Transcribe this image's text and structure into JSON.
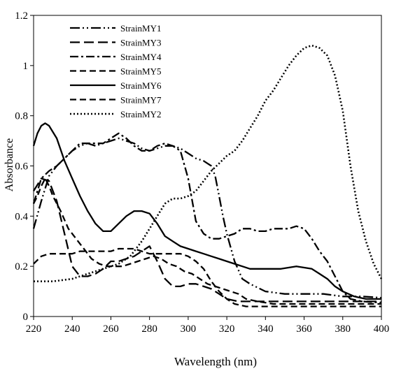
{
  "chart_data": {
    "type": "line",
    "title": "",
    "xlabel": "Wavelength (nm)",
    "ylabel": "Absorbance",
    "xlim": [
      220,
      400
    ],
    "ylim": [
      0,
      1.2
    ],
    "xticks": [
      220,
      240,
      260,
      280,
      300,
      320,
      340,
      360,
      380,
      400
    ],
    "yticks": [
      0,
      0.2,
      0.4,
      0.6,
      0.8,
      1,
      1.2
    ],
    "xtick_labels": [
      "220",
      "240",
      "260",
      "280",
      "300",
      "320",
      "340",
      "360",
      "380",
      "400"
    ],
    "ytick_labels": [
      "0",
      "0.2",
      "0.4",
      "0.6",
      "0.8",
      "1",
      "1.2"
    ],
    "grid": false,
    "legend_position": "top-left",
    "series": [
      {
        "name": "StrainMY1",
        "dash": "longdashdotdot",
        "points": [
          [
            220,
            0.35
          ],
          [
            224,
            0.46
          ],
          [
            228,
            0.56
          ],
          [
            232,
            0.6
          ],
          [
            236,
            0.63
          ],
          [
            240,
            0.66
          ],
          [
            244,
            0.68
          ],
          [
            248,
            0.69
          ],
          [
            252,
            0.68
          ],
          [
            256,
            0.69
          ],
          [
            260,
            0.7
          ],
          [
            264,
            0.71
          ],
          [
            268,
            0.7
          ],
          [
            272,
            0.69
          ],
          [
            276,
            0.67
          ],
          [
            280,
            0.66
          ],
          [
            284,
            0.67
          ],
          [
            288,
            0.68
          ],
          [
            292,
            0.68
          ],
          [
            296,
            0.67
          ],
          [
            300,
            0.65
          ],
          [
            304,
            0.63
          ],
          [
            308,
            0.62
          ],
          [
            310,
            0.61
          ],
          [
            312,
            0.6
          ],
          [
            314,
            0.56
          ],
          [
            316,
            0.48
          ],
          [
            318,
            0.4
          ],
          [
            320,
            0.33
          ],
          [
            324,
            0.22
          ],
          [
            328,
            0.15
          ],
          [
            332,
            0.13
          ],
          [
            340,
            0.1
          ],
          [
            350,
            0.09
          ],
          [
            360,
            0.09
          ],
          [
            370,
            0.09
          ],
          [
            380,
            0.08
          ],
          [
            390,
            0.08
          ],
          [
            400,
            0.075
          ]
        ]
      },
      {
        "name": "StrainMY3",
        "dash": "longdash",
        "points": [
          [
            220,
            0.5
          ],
          [
            224,
            0.55
          ],
          [
            228,
            0.54
          ],
          [
            232,
            0.46
          ],
          [
            236,
            0.33
          ],
          [
            240,
            0.2
          ],
          [
            244,
            0.16
          ],
          [
            248,
            0.16
          ],
          [
            252,
            0.17
          ],
          [
            256,
            0.19
          ],
          [
            260,
            0.22
          ],
          [
            264,
            0.22
          ],
          [
            268,
            0.23
          ],
          [
            272,
            0.24
          ],
          [
            276,
            0.26
          ],
          [
            280,
            0.28
          ],
          [
            284,
            0.22
          ],
          [
            288,
            0.15
          ],
          [
            292,
            0.12
          ],
          [
            296,
            0.12
          ],
          [
            300,
            0.13
          ],
          [
            304,
            0.13
          ],
          [
            308,
            0.12
          ],
          [
            312,
            0.11
          ],
          [
            316,
            0.09
          ],
          [
            320,
            0.07
          ],
          [
            326,
            0.06
          ],
          [
            340,
            0.06
          ],
          [
            360,
            0.06
          ],
          [
            380,
            0.06
          ],
          [
            400,
            0.06
          ]
        ]
      },
      {
        "name": "StrainMY4",
        "dash": "dashdot",
        "points": [
          [
            220,
            0.45
          ],
          [
            224,
            0.55
          ],
          [
            228,
            0.58
          ],
          [
            232,
            0.6
          ],
          [
            236,
            0.63
          ],
          [
            240,
            0.66
          ],
          [
            244,
            0.69
          ],
          [
            248,
            0.69
          ],
          [
            252,
            0.69
          ],
          [
            256,
            0.69
          ],
          [
            260,
            0.71
          ],
          [
            264,
            0.73
          ],
          [
            268,
            0.71
          ],
          [
            272,
            0.68
          ],
          [
            276,
            0.66
          ],
          [
            280,
            0.66
          ],
          [
            284,
            0.68
          ],
          [
            288,
            0.69
          ],
          [
            292,
            0.68
          ],
          [
            296,
            0.66
          ],
          [
            300,
            0.55
          ],
          [
            304,
            0.38
          ],
          [
            308,
            0.33
          ],
          [
            312,
            0.31
          ],
          [
            316,
            0.31
          ],
          [
            320,
            0.32
          ],
          [
            324,
            0.33
          ],
          [
            328,
            0.35
          ],
          [
            332,
            0.35
          ],
          [
            336,
            0.34
          ],
          [
            340,
            0.34
          ],
          [
            344,
            0.35
          ],
          [
            348,
            0.35
          ],
          [
            352,
            0.35
          ],
          [
            356,
            0.36
          ],
          [
            360,
            0.35
          ],
          [
            364,
            0.31
          ],
          [
            368,
            0.26
          ],
          [
            372,
            0.22
          ],
          [
            376,
            0.16
          ],
          [
            380,
            0.1
          ],
          [
            384,
            0.07
          ],
          [
            390,
            0.06
          ],
          [
            400,
            0.055
          ]
        ]
      },
      {
        "name": "StrainMY5",
        "dash": "dash",
        "points": [
          [
            220,
            0.21
          ],
          [
            224,
            0.24
          ],
          [
            228,
            0.25
          ],
          [
            232,
            0.25
          ],
          [
            236,
            0.25
          ],
          [
            240,
            0.25
          ],
          [
            244,
            0.26
          ],
          [
            248,
            0.26
          ],
          [
            252,
            0.26
          ],
          [
            256,
            0.26
          ],
          [
            260,
            0.26
          ],
          [
            264,
            0.27
          ],
          [
            268,
            0.27
          ],
          [
            272,
            0.27
          ],
          [
            276,
            0.26
          ],
          [
            280,
            0.25
          ],
          [
            284,
            0.25
          ],
          [
            288,
            0.25
          ],
          [
            292,
            0.25
          ],
          [
            296,
            0.25
          ],
          [
            300,
            0.24
          ],
          [
            304,
            0.22
          ],
          [
            308,
            0.19
          ],
          [
            312,
            0.14
          ],
          [
            316,
            0.1
          ],
          [
            320,
            0.07
          ],
          [
            324,
            0.05
          ],
          [
            330,
            0.04
          ],
          [
            340,
            0.04
          ],
          [
            350,
            0.04
          ],
          [
            360,
            0.04
          ],
          [
            370,
            0.04
          ],
          [
            380,
            0.04
          ],
          [
            390,
            0.04
          ],
          [
            400,
            0.04
          ]
        ]
      },
      {
        "name": "StrainMY6",
        "dash": "solid",
        "points": [
          [
            220,
            0.68
          ],
          [
            222,
            0.73
          ],
          [
            224,
            0.76
          ],
          [
            226,
            0.77
          ],
          [
            228,
            0.76
          ],
          [
            232,
            0.71
          ],
          [
            236,
            0.62
          ],
          [
            240,
            0.55
          ],
          [
            244,
            0.48
          ],
          [
            248,
            0.42
          ],
          [
            252,
            0.37
          ],
          [
            256,
            0.34
          ],
          [
            260,
            0.34
          ],
          [
            264,
            0.37
          ],
          [
            268,
            0.4
          ],
          [
            272,
            0.42
          ],
          [
            276,
            0.42
          ],
          [
            280,
            0.41
          ],
          [
            284,
            0.37
          ],
          [
            288,
            0.32
          ],
          [
            292,
            0.3
          ],
          [
            296,
            0.28
          ],
          [
            300,
            0.27
          ],
          [
            304,
            0.26
          ],
          [
            308,
            0.25
          ],
          [
            312,
            0.24
          ],
          [
            316,
            0.23
          ],
          [
            320,
            0.22
          ],
          [
            324,
            0.21
          ],
          [
            328,
            0.2
          ],
          [
            332,
            0.19
          ],
          [
            340,
            0.19
          ],
          [
            348,
            0.19
          ],
          [
            356,
            0.2
          ],
          [
            364,
            0.19
          ],
          [
            368,
            0.17
          ],
          [
            372,
            0.15
          ],
          [
            376,
            0.12
          ],
          [
            380,
            0.1
          ],
          [
            386,
            0.08
          ],
          [
            392,
            0.07
          ],
          [
            400,
            0.07
          ]
        ]
      },
      {
        "name": "StrainMY7",
        "dash": "dash",
        "points": [
          [
            220,
            0.45
          ],
          [
            222,
            0.48
          ],
          [
            224,
            0.52
          ],
          [
            226,
            0.55
          ],
          [
            228,
            0.52
          ],
          [
            230,
            0.48
          ],
          [
            234,
            0.42
          ],
          [
            238,
            0.35
          ],
          [
            242,
            0.31
          ],
          [
            246,
            0.27
          ],
          [
            250,
            0.23
          ],
          [
            254,
            0.21
          ],
          [
            258,
            0.2
          ],
          [
            262,
            0.2
          ],
          [
            266,
            0.2
          ],
          [
            270,
            0.21
          ],
          [
            274,
            0.22
          ],
          [
            278,
            0.23
          ],
          [
            282,
            0.24
          ],
          [
            286,
            0.23
          ],
          [
            290,
            0.21
          ],
          [
            294,
            0.2
          ],
          [
            298,
            0.18
          ],
          [
            302,
            0.17
          ],
          [
            306,
            0.15
          ],
          [
            310,
            0.13
          ],
          [
            314,
            0.12
          ],
          [
            318,
            0.11
          ],
          [
            322,
            0.1
          ],
          [
            326,
            0.09
          ],
          [
            330,
            0.07
          ],
          [
            336,
            0.06
          ],
          [
            344,
            0.05
          ],
          [
            356,
            0.05
          ],
          [
            370,
            0.05
          ],
          [
            385,
            0.05
          ],
          [
            400,
            0.05
          ]
        ]
      },
      {
        "name": "StrainMY2",
        "dash": "dot",
        "points": [
          [
            220,
            0.14
          ],
          [
            230,
            0.14
          ],
          [
            240,
            0.15
          ],
          [
            248,
            0.17
          ],
          [
            256,
            0.19
          ],
          [
            264,
            0.21
          ],
          [
            270,
            0.24
          ],
          [
            276,
            0.3
          ],
          [
            280,
            0.35
          ],
          [
            284,
            0.4
          ],
          [
            288,
            0.45
          ],
          [
            292,
            0.47
          ],
          [
            296,
            0.47
          ],
          [
            300,
            0.48
          ],
          [
            304,
            0.5
          ],
          [
            308,
            0.54
          ],
          [
            312,
            0.58
          ],
          [
            316,
            0.61
          ],
          [
            320,
            0.64
          ],
          [
            324,
            0.66
          ],
          [
            328,
            0.7
          ],
          [
            332,
            0.75
          ],
          [
            336,
            0.8
          ],
          [
            340,
            0.86
          ],
          [
            344,
            0.9
          ],
          [
            348,
            0.95
          ],
          [
            352,
            1.0
          ],
          [
            356,
            1.04
          ],
          [
            360,
            1.07
          ],
          [
            364,
            1.08
          ],
          [
            368,
            1.07
          ],
          [
            372,
            1.04
          ],
          [
            376,
            0.96
          ],
          [
            380,
            0.82
          ],
          [
            384,
            0.6
          ],
          [
            388,
            0.42
          ],
          [
            392,
            0.3
          ],
          [
            396,
            0.21
          ],
          [
            400,
            0.15
          ]
        ]
      }
    ]
  }
}
